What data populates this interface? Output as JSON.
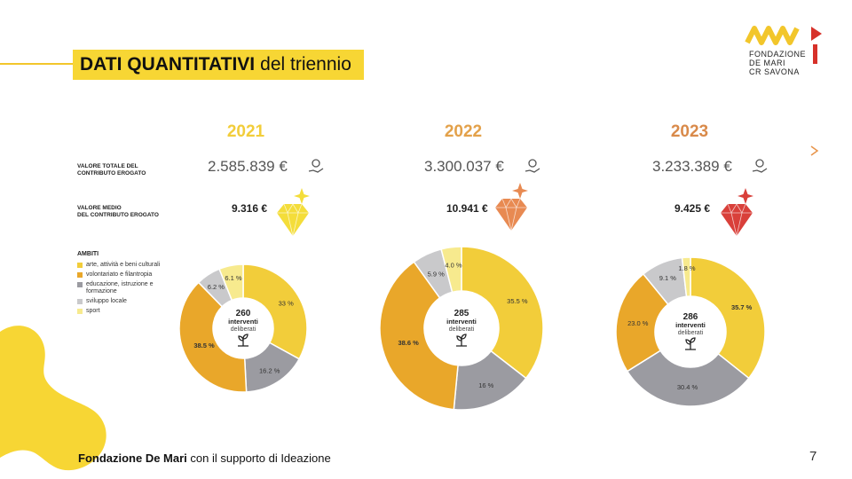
{
  "title": {
    "bold": "DATI QUANTITATIVI",
    "rest": "del triennio"
  },
  "logo": {
    "line1": "FONDAZIONE",
    "line2": "DE MARI",
    "line3": "CR SAVONA"
  },
  "row_labels": {
    "total": [
      "VALORE TOTALE DEL",
      "CONTRIBUTO EROGATO"
    ],
    "average": [
      "VALORE MEDIO",
      "DEL CONTRIBUTO EROGATO"
    ]
  },
  "legend": {
    "title": "AMBITI",
    "items": [
      {
        "label": "arte, attività e beni culturali",
        "color": "#f2cd3a"
      },
      {
        "label": "volontariato e filantropia",
        "color": "#e9a72a"
      },
      {
        "label": "educazione, istruzione e formazione",
        "color": "#9b9ba1"
      },
      {
        "label": "sviluppo locale",
        "color": "#c9c9cb"
      },
      {
        "label": "sport",
        "color": "#f7ea8e"
      }
    ]
  },
  "center_text": {
    "line2": "interventi",
    "line3": "deliberati"
  },
  "years": [
    {
      "year": "2021",
      "year_color": "#f2cd3a",
      "total": "2.585.839 €",
      "average": "9.316 €",
      "diamond_color": "#f4dd3a",
      "count": "260"
    },
    {
      "year": "2022",
      "year_color": "#e3a14a",
      "total": "3.300.037 €",
      "average": "10.941 €",
      "diamond_color": "#e88a52",
      "count": "285"
    },
    {
      "year": "2023",
      "year_color": "#d98a4a",
      "total": "3.233.389 €",
      "average": "9.425 €",
      "diamond_color": "#d9403a",
      "count": "286"
    }
  ],
  "chart_data": [
    {
      "type": "pie",
      "title": "2021",
      "categories": [
        "arte, attività e beni culturali",
        "educazione, istruzione e formazione",
        "volontariato e filantropia",
        "sviluppo locale",
        "sport"
      ],
      "values": [
        33,
        16.2,
        38.5,
        6.2,
        6.1
      ],
      "labels": [
        "33 %",
        "16.2 %",
        "38.5 %",
        "6.2 %",
        "6.1 %"
      ],
      "colors": [
        "#f2cd3a",
        "#9b9ba1",
        "#e9a72a",
        "#c9c9cb",
        "#f7ea8e"
      ],
      "bold_index": 2
    },
    {
      "type": "pie",
      "title": "2022",
      "categories": [
        "arte, attività e beni culturali",
        "educazione, istruzione e formazione",
        "volontariato e filantropia",
        "sviluppo locale",
        "sport"
      ],
      "values": [
        35.5,
        16,
        38.6,
        5.9,
        4.0
      ],
      "labels": [
        "35.5 %",
        "16 %",
        "38.6 %",
        "5.9 %",
        "4.0 %"
      ],
      "colors": [
        "#f2cd3a",
        "#9b9ba1",
        "#e9a72a",
        "#c9c9cb",
        "#f7ea8e"
      ],
      "bold_index": 2
    },
    {
      "type": "pie",
      "title": "2023",
      "categories": [
        "arte, attività e beni culturali",
        "educazione, istruzione e formazione",
        "volontariato e filantropia",
        "sviluppo locale",
        "sport"
      ],
      "values": [
        35.7,
        30.4,
        23.0,
        9.1,
        1.8
      ],
      "labels": [
        "35.7 %",
        "30.4 %",
        "23.0 %",
        "9.1 %",
        "1.8 %"
      ],
      "colors": [
        "#f2cd3a",
        "#9b9ba1",
        "#e9a72a",
        "#c9c9cb",
        "#f7ea8e"
      ],
      "bold_index": 0
    }
  ],
  "footer": {
    "bold": "Fondazione De Mari",
    "rest": "con il supporto di Ideazione"
  },
  "page_number": "7"
}
